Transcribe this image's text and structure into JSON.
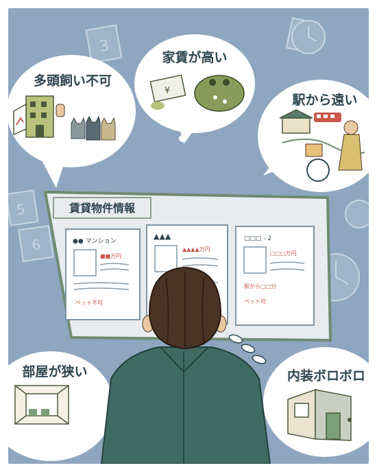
{
  "bubbles": {
    "pets": "多頭飼い不可",
    "rent": "家賃が高い",
    "station": "駅から遠い",
    "room": "部屋が狭い",
    "interior": "内装ボロボロ"
  },
  "board": {
    "title": "賃貸物件情報",
    "cards": [
      {
        "name": "●● マンション",
        "price": "■■万円",
        "note": "ペット不可"
      },
      {
        "name": "▲▲▲",
        "price": "▲▲▲▲万円",
        "note": ""
      },
      {
        "name": "□□□ - 2",
        "price": "□□□万円",
        "note1": "駅から□□分",
        "note2": "ペット可"
      }
    ]
  },
  "icons": {
    "money": "¥"
  },
  "colors": {
    "background": "#8fa6c0",
    "bubble": "#ffffff",
    "text": "#2e4550",
    "board": "#e8ecee",
    "board_border": "#6f8a72",
    "card_border": "#7f95a6",
    "person_jacket": "#3f6b62",
    "person_hair": "#4a3426"
  }
}
